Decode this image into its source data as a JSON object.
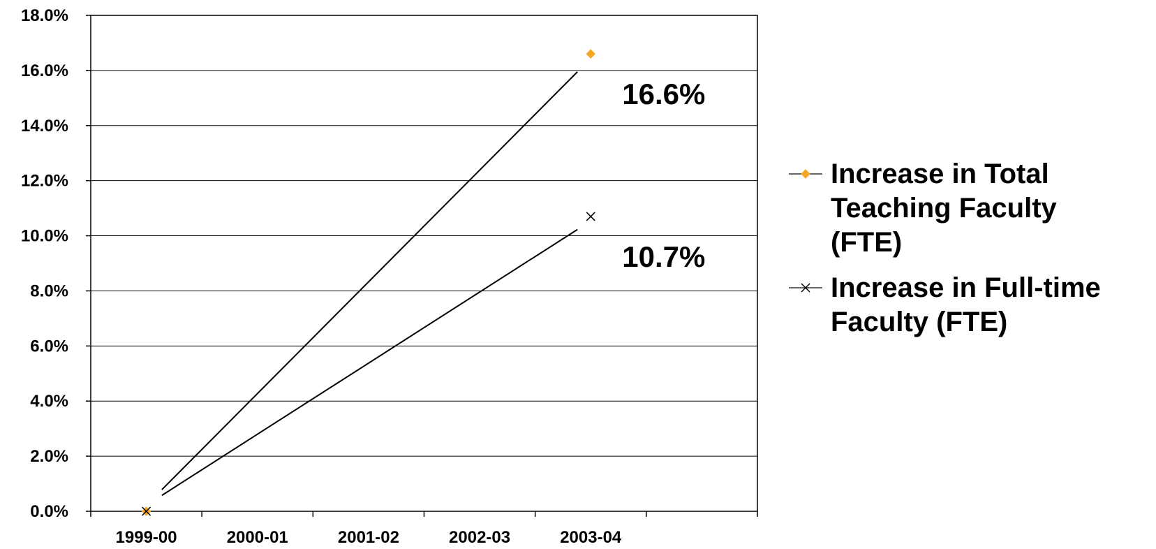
{
  "chart_data": {
    "type": "line",
    "title": "",
    "xlabel": "",
    "ylabel": "",
    "categories": [
      "1999-00",
      "2000-01",
      "2001-02",
      "2002-03",
      "2003-04"
    ],
    "ylim": [
      0,
      18
    ],
    "y_ticks": [
      "0.0%",
      "2.0%",
      "4.0%",
      "6.0%",
      "8.0%",
      "10.0%",
      "12.0%",
      "14.0%",
      "16.0%",
      "18.0%"
    ],
    "grid": true,
    "legend_position": "right",
    "series": [
      {
        "name": "Increase in Total Teaching Faculty (FTE)",
        "legend_lines": [
          "Increase in Total",
          "Teaching Faculty",
          "(FTE)"
        ],
        "points": [
          {
            "x": "1999-00",
            "y": 0.0
          },
          {
            "x": "2003-04",
            "y": 16.6
          }
        ],
        "marker": "diamond",
        "marker_color": "#f5a623",
        "line_color": "#000000"
      },
      {
        "name": "Increase in Full-time Faculty (FTE)",
        "legend_lines": [
          "Increase in Full-time",
          "Faculty (FTE)"
        ],
        "points": [
          {
            "x": "1999-00",
            "y": 0.0
          },
          {
            "x": "2003-04",
            "y": 10.7
          }
        ],
        "marker": "x",
        "marker_color": "#000000",
        "line_color": "#000000"
      }
    ],
    "annotations": [
      {
        "text": "16.6%",
        "series": 0
      },
      {
        "text": "10.7%",
        "series": 1
      }
    ]
  }
}
